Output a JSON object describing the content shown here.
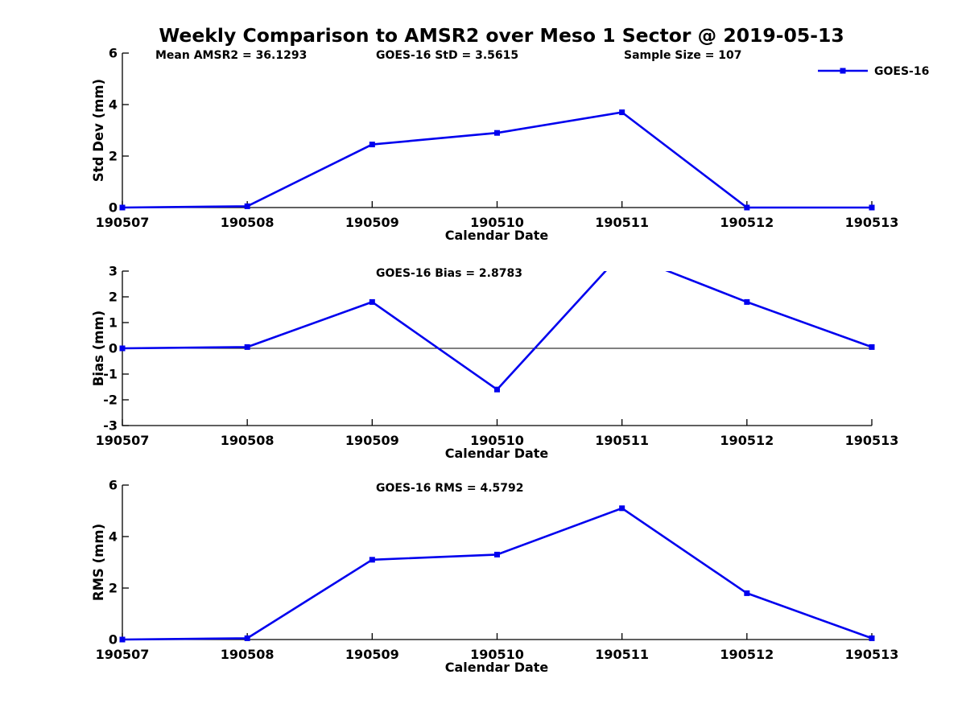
{
  "title": "Weekly Comparison to AMSR2 over Meso 1 Sector @ 2019-05-13",
  "legend": {
    "label": "GOES-16",
    "position": "top-right"
  },
  "colors": {
    "series": "#0000ee",
    "axis": "#000000",
    "text": "#000000",
    "background": "#ffffff"
  },
  "chart_data": [
    {
      "type": "line",
      "ylabel": "Std Dev (mm)",
      "xlabel": "Calendar Date",
      "x": [
        "190507",
        "190508",
        "190509",
        "190510",
        "190511",
        "190512",
        "190513"
      ],
      "ylim": [
        0,
        6
      ],
      "yticks": [
        0,
        2,
        4,
        6
      ],
      "grid": false,
      "zero_line": false,
      "annotations": [
        "Mean AMSR2 = 36.1293",
        "GOES-16 StD = 3.5615",
        "Sample Size = 107"
      ],
      "series": [
        {
          "name": "GOES-16",
          "color": "#0000ee",
          "marker": "square",
          "values": [
            0,
            0.05,
            2.45,
            2.9,
            3.7,
            0,
            0
          ]
        }
      ]
    },
    {
      "type": "line",
      "ylabel": "Bias (mm)",
      "xlabel": "Calendar Date",
      "x": [
        "190507",
        "190508",
        "190509",
        "190510",
        "190511",
        "190512",
        "190513"
      ],
      "ylim": [
        -3,
        3
      ],
      "yticks": [
        -3,
        -2,
        -1,
        0,
        1,
        2,
        3
      ],
      "grid": false,
      "zero_line": true,
      "annotations": [
        "GOES-16 Bias  = 2.8783"
      ],
      "series": [
        {
          "name": "GOES-16",
          "color": "#0000ee",
          "marker": "square",
          "values": [
            0,
            0.05,
            1.8,
            -1.6,
            3.7,
            1.8,
            0.05
          ]
        }
      ]
    },
    {
      "type": "line",
      "ylabel": "RMS (mm)",
      "xlabel": "Calendar Date",
      "x": [
        "190507",
        "190508",
        "190509",
        "190510",
        "190511",
        "190512",
        "190513"
      ],
      "ylim": [
        0,
        6
      ],
      "yticks": [
        0,
        2,
        4,
        6
      ],
      "grid": false,
      "zero_line": false,
      "annotations": [
        "GOES-16 RMS = 4.5792"
      ],
      "series": [
        {
          "name": "GOES-16",
          "color": "#0000ee",
          "marker": "square",
          "values": [
            0,
            0.05,
            3.1,
            3.3,
            5.1,
            1.8,
            0.05
          ]
        }
      ]
    }
  ]
}
